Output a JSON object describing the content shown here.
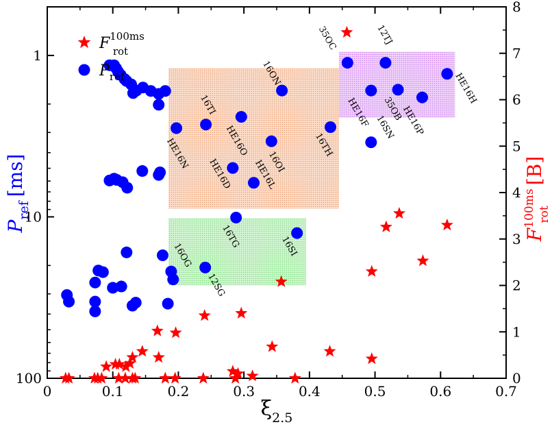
{
  "chart_data": {
    "type": "scatter",
    "title": "",
    "xlabel": {
      "base": "ξ",
      "sub": "2.5"
    },
    "ylabel_left": {
      "base": "P",
      "sub": "ref",
      "units": "[ms]"
    },
    "ylabel_right": {
      "base": "F",
      "sub": "rot",
      "sup": "100ms",
      "units": "[B]"
    },
    "xlim": [
      0,
      0.7
    ],
    "ylim_left": [
      100,
      0.5
    ],
    "yscale_left": "log-inverted",
    "ylim_right": [
      0,
      8
    ],
    "xticks": [
      0,
      0.1,
      0.2,
      0.3,
      0.4,
      0.5,
      0.6,
      0.7
    ],
    "xtick_labels": [
      "0",
      "0.1",
      "0.2",
      "0.3",
      "0.4",
      "0.5",
      "0.6",
      "0.7"
    ],
    "yticks_left": [
      1,
      10,
      100
    ],
    "ytick_labels_left": [
      "1",
      "10",
      "100"
    ],
    "yticks_right": [
      0,
      1,
      2,
      3,
      4,
      5,
      6,
      7,
      8
    ],
    "ytick_labels_right": [
      "0",
      "1",
      "2",
      "3",
      "4",
      "5",
      "6",
      "7",
      "8"
    ],
    "colors": {
      "pref": "#0000ff",
      "frot": "#ff0000",
      "box_orange": "#f0a070",
      "box_green": "#80e080",
      "box_purple": "#d080f0"
    },
    "legend": [
      {
        "name": "frot",
        "base": "F",
        "sub": "rot",
        "sup": "100ms",
        "marker": "star"
      },
      {
        "name": "pref",
        "base": "P",
        "sub": "ref",
        "marker": "circle"
      }
    ],
    "legend_position": "top-left",
    "boxes": [
      {
        "name": "orange-region",
        "x": [
          0.185,
          0.445
        ],
        "y_ms": [
          1.2,
          8.9
        ],
        "color": "box_orange"
      },
      {
        "name": "green-region",
        "x": [
          0.185,
          0.395
        ],
        "y_ms": [
          10.2,
          26.5
        ],
        "color": "box_green"
      },
      {
        "name": "purple-region",
        "x": [
          0.445,
          0.622
        ],
        "y_ms": [
          0.95,
          2.43
        ],
        "color": "box_purple"
      }
    ],
    "series": [
      {
        "name": "P_ref",
        "axis": "left",
        "units": "ms",
        "points": [
          {
            "x": 0.03,
            "y": 30.5
          },
          {
            "x": 0.033,
            "y": 33.5
          },
          {
            "x": 0.073,
            "y": 33.5
          },
          {
            "x": 0.073,
            "y": 38.5
          },
          {
            "x": 0.073,
            "y": 25.5
          },
          {
            "x": 0.078,
            "y": 21.5
          },
          {
            "x": 0.085,
            "y": 22.0
          },
          {
            "x": 0.095,
            "y": 1.15
          },
          {
            "x": 0.102,
            "y": 1.15
          },
          {
            "x": 0.105,
            "y": 1.2
          },
          {
            "x": 0.108,
            "y": 1.26
          },
          {
            "x": 0.112,
            "y": 1.32
          },
          {
            "x": 0.118,
            "y": 1.4
          },
          {
            "x": 0.121,
            "y": 1.44
          },
          {
            "x": 0.128,
            "y": 1.51
          },
          {
            "x": 0.131,
            "y": 1.71
          },
          {
            "x": 0.136,
            "y": 1.65
          },
          {
            "x": 0.146,
            "y": 1.58
          },
          {
            "x": 0.158,
            "y": 1.66
          },
          {
            "x": 0.17,
            "y": 1.73
          },
          {
            "x": 0.18,
            "y": 1.66
          },
          {
            "x": 0.17,
            "y": 2.02
          },
          {
            "x": 0.095,
            "y": 5.95
          },
          {
            "x": 0.102,
            "y": 5.8
          },
          {
            "x": 0.106,
            "y": 5.9
          },
          {
            "x": 0.115,
            "y": 6.1
          },
          {
            "x": 0.122,
            "y": 6.6
          },
          {
            "x": 0.145,
            "y": 5.2
          },
          {
            "x": 0.17,
            "y": 5.5
          },
          {
            "x": 0.172,
            "y": 5.3
          },
          {
            "x": 0.1,
            "y": 27.5
          },
          {
            "x": 0.113,
            "y": 27.0
          },
          {
            "x": 0.121,
            "y": 16.6
          },
          {
            "x": 0.13,
            "y": 35.5
          },
          {
            "x": 0.135,
            "y": 34.0
          },
          {
            "x": 0.176,
            "y": 17.3
          },
          {
            "x": 0.184,
            "y": 34.5
          },
          {
            "x": 0.192,
            "y": 24.4
          },
          {
            "x": 0.197,
            "y": 2.82,
            "label": "HE16N"
          },
          {
            "x": 0.242,
            "y": 2.68,
            "label": "16TI"
          },
          {
            "x": 0.296,
            "y": 2.4,
            "label": "HE16O"
          },
          {
            "x": 0.358,
            "y": 1.65,
            "label": "16ON"
          },
          {
            "x": 0.342,
            "y": 3.4,
            "label": "16OI"
          },
          {
            "x": 0.283,
            "y": 4.98,
            "label": "HE16D"
          },
          {
            "x": 0.315,
            "y": 6.15,
            "label": "HE16L"
          },
          {
            "x": 0.432,
            "y": 2.78,
            "label": "16TH"
          },
          {
            "x": 0.288,
            "y": 10.1,
            "label": "16TG"
          },
          {
            "x": 0.241,
            "y": 20.6,
            "label": "12SG"
          },
          {
            "x": 0.189,
            "y": 21.8,
            "label": "16OG"
          },
          {
            "x": 0.381,
            "y": 12.6,
            "label": "16SI"
          },
          {
            "x": 0.458,
            "y": 1.11,
            "label": "35OC"
          },
          {
            "x": 0.516,
            "y": 1.11,
            "label": "12TJ"
          },
          {
            "x": 0.494,
            "y": 1.65,
            "label": "HE16F"
          },
          {
            "x": 0.535,
            "y": 1.63,
            "label": "35OB"
          },
          {
            "x": 0.572,
            "y": 1.82,
            "label": "HE16P"
          },
          {
            "x": 0.61,
            "y": 1.3,
            "label": "HE16H"
          },
          {
            "x": 0.494,
            "y": 3.45,
            "label": "16SN"
          }
        ]
      },
      {
        "name": "F_rot_100ms",
        "axis": "right",
        "units": "B",
        "points": [
          {
            "x": 0.028,
            "y": 0.0
          },
          {
            "x": 0.033,
            "y": 0.0
          },
          {
            "x": 0.072,
            "y": 0.0
          },
          {
            "x": 0.077,
            "y": 0.0
          },
          {
            "x": 0.083,
            "y": 0.0
          },
          {
            "x": 0.09,
            "y": 0.25
          },
          {
            "x": 0.104,
            "y": 0.3
          },
          {
            "x": 0.11,
            "y": 0.3
          },
          {
            "x": 0.12,
            "y": 0.25
          },
          {
            "x": 0.126,
            "y": 0.32
          },
          {
            "x": 0.13,
            "y": 0.0
          },
          {
            "x": 0.134,
            "y": 0.0
          },
          {
            "x": 0.109,
            "y": 0.0
          },
          {
            "x": 0.119,
            "y": 0.0
          },
          {
            "x": 0.145,
            "y": 0.58
          },
          {
            "x": 0.13,
            "y": 0.45
          },
          {
            "x": 0.17,
            "y": 0.45
          },
          {
            "x": 0.168,
            "y": 1.02
          },
          {
            "x": 0.196,
            "y": 0.98
          },
          {
            "x": 0.18,
            "y": 0.0
          },
          {
            "x": 0.195,
            "y": 0.0
          },
          {
            "x": 0.238,
            "y": 0.0
          },
          {
            "x": 0.24,
            "y": 1.35
          },
          {
            "x": 0.296,
            "y": 1.4
          },
          {
            "x": 0.283,
            "y": 0.15
          },
          {
            "x": 0.291,
            "y": 0.1
          },
          {
            "x": 0.287,
            "y": 0.0
          },
          {
            "x": 0.313,
            "y": 0.05
          },
          {
            "x": 0.343,
            "y": 0.68
          },
          {
            "x": 0.357,
            "y": 2.08
          },
          {
            "x": 0.378,
            "y": 0.0
          },
          {
            "x": 0.431,
            "y": 0.58
          },
          {
            "x": 0.457,
            "y": 7.45
          },
          {
            "x": 0.495,
            "y": 2.3
          },
          {
            "x": 0.495,
            "y": 0.42
          },
          {
            "x": 0.517,
            "y": 3.26
          },
          {
            "x": 0.537,
            "y": 3.55
          },
          {
            "x": 0.573,
            "y": 2.53
          },
          {
            "x": 0.61,
            "y": 3.3
          }
        ]
      }
    ]
  }
}
